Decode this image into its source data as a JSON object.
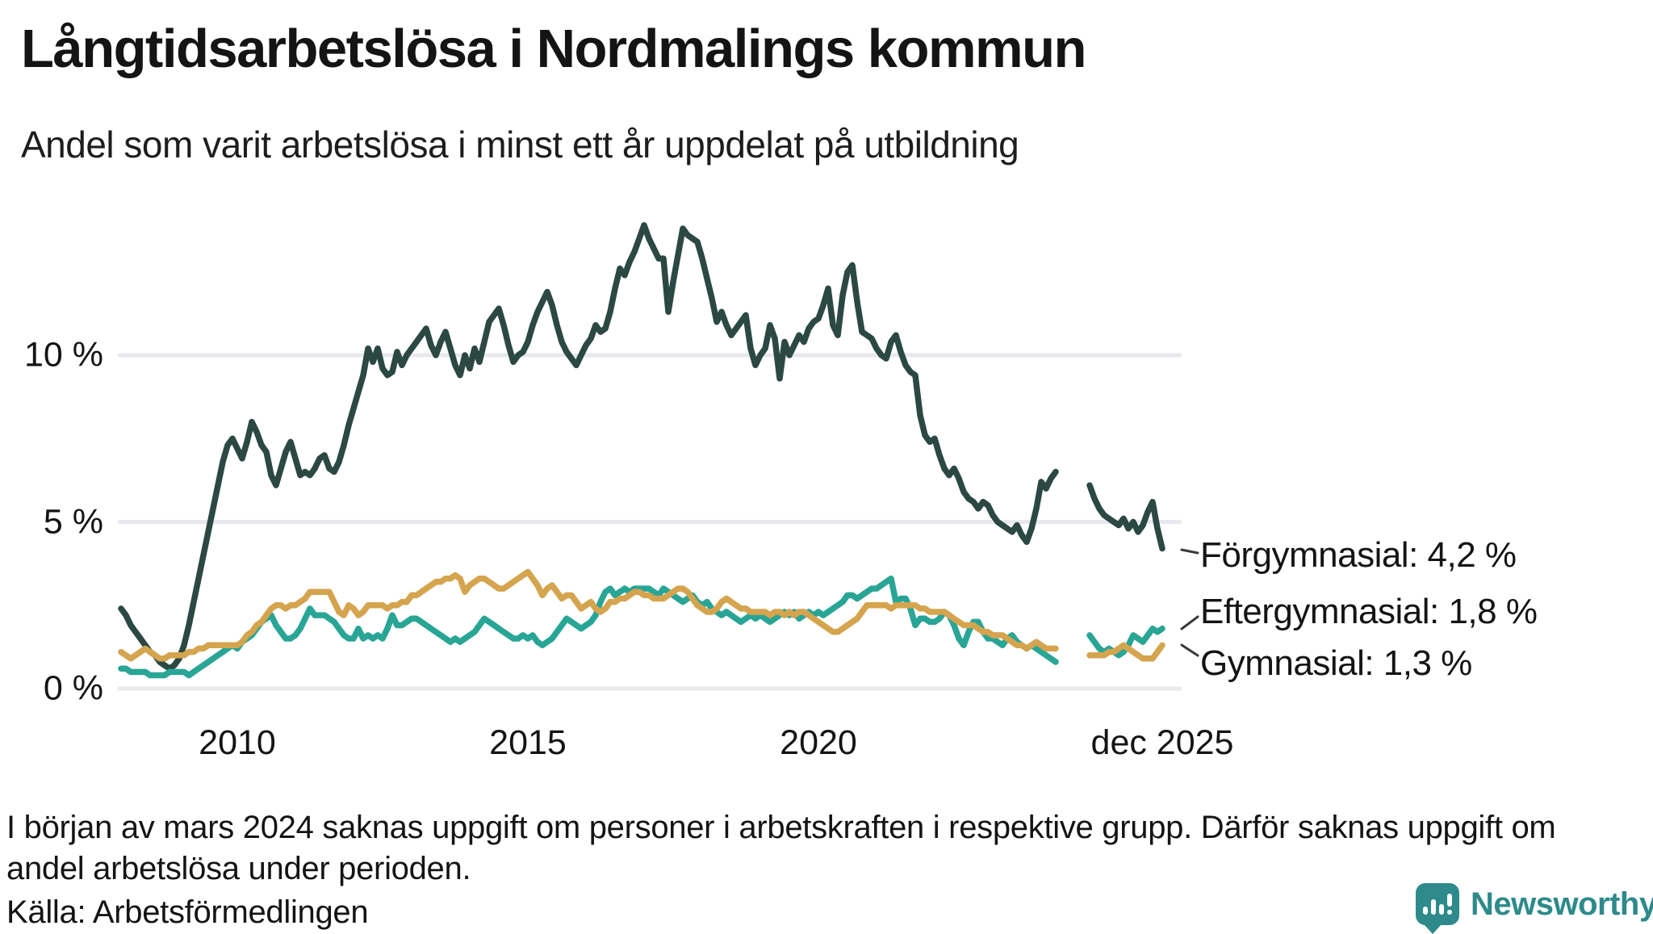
{
  "title": "Långtidsarbetslösa i Nordmalings kommun",
  "subtitle": "Andel som varit arbetslösa i minst ett år uppdelat på utbildning",
  "footnote": "I början av mars 2024 saknas uppgift om personer i arbetskraften i respektive grupp. Därför saknas uppgift om andel arbetslösa under perioden.",
  "source": "Källa: Arbetsförmedlingen",
  "logo_text": "Newsworthy",
  "colors": {
    "forgymnasial": "#2c4843",
    "eftergymnasial": "#29a596",
    "gymnasial": "#d5a44e",
    "gridline": "#e9e9ed",
    "text": "#141414",
    "leader": "#3a3a3a",
    "logo_teal": "#2e8a8b"
  },
  "y_axis": {
    "ticks": [
      "0 %",
      "5 %",
      "10 %"
    ]
  },
  "x_axis": {
    "ticks": [
      "2010",
      "2015",
      "2020",
      "dec 2025"
    ]
  },
  "annotations": [
    {
      "label": "Förgymnasial: 4,2 %"
    },
    {
      "label": "Eftergymnasial: 1,8 %"
    },
    {
      "label": "Gymnasial: 1,3 %"
    }
  ],
  "chart_data": {
    "type": "line",
    "unit": "percent",
    "frequency": "monthly",
    "x_start": "2008-01",
    "x_end": "2025-12",
    "data_gap": {
      "from": "2024-03",
      "to": "2024-08",
      "reason": "uppgift saknas"
    },
    "ylim": [
      0,
      14.5
    ],
    "grid_values": [
      0,
      5,
      10
    ],
    "series": [
      {
        "name": "Förgymnasial",
        "color": "#2c4843",
        "end_value": 4.2,
        "end_label": "Förgymnasial: 4,2 %",
        "values": [
          2.4,
          2.2,
          1.9,
          1.7,
          1.5,
          1.3,
          1.1,
          1.0,
          0.8,
          0.7,
          0.6,
          0.7,
          0.9,
          1.3,
          1.9,
          2.6,
          3.3,
          4.0,
          4.7,
          5.4,
          6.1,
          6.8,
          7.3,
          7.5,
          7.2,
          6.9,
          7.4,
          8.0,
          7.7,
          7.3,
          7.1,
          6.4,
          6.1,
          6.6,
          7.1,
          7.4,
          6.9,
          6.4,
          6.5,
          6.4,
          6.6,
          6.9,
          7.0,
          6.6,
          6.5,
          6.8,
          7.3,
          7.9,
          8.4,
          8.9,
          9.4,
          10.2,
          9.8,
          10.2,
          9.6,
          9.4,
          9.5,
          10.1,
          9.7,
          10.0,
          10.2,
          10.4,
          10.6,
          10.8,
          10.3,
          10.0,
          10.4,
          10.7,
          10.2,
          9.7,
          9.4,
          10.0,
          9.6,
          10.2,
          9.8,
          10.4,
          11.0,
          11.2,
          11.4,
          10.9,
          10.3,
          9.8,
          10.0,
          10.1,
          10.4,
          10.9,
          11.3,
          11.6,
          11.9,
          11.5,
          10.9,
          10.4,
          10.1,
          9.9,
          9.7,
          10.0,
          10.3,
          10.5,
          10.9,
          10.7,
          10.8,
          11.3,
          12.0,
          12.6,
          12.4,
          12.8,
          13.1,
          13.5,
          13.9,
          13.5,
          13.2,
          12.9,
          12.9,
          11.3,
          12.2,
          13.0,
          13.8,
          13.6,
          13.5,
          13.4,
          12.9,
          12.3,
          11.7,
          11.0,
          11.3,
          10.9,
          10.6,
          10.8,
          11.0,
          11.2,
          10.2,
          9.7,
          10.0,
          10.2,
          10.9,
          10.5,
          9.3,
          10.4,
          10.0,
          10.3,
          10.6,
          10.4,
          10.8,
          11.0,
          11.1,
          11.5,
          12.0,
          10.9,
          10.6,
          11.8,
          12.5,
          12.7,
          11.6,
          10.7,
          10.6,
          10.5,
          10.2,
          10.0,
          9.9,
          10.4,
          10.6,
          10.1,
          9.7,
          9.5,
          9.4,
          8.2,
          7.6,
          7.4,
          7.5,
          7.0,
          6.6,
          6.4,
          6.6,
          6.3,
          5.9,
          5.7,
          5.6,
          5.4,
          5.6,
          5.5,
          5.2,
          5.0,
          4.9,
          4.8,
          4.7,
          4.9,
          4.6,
          4.4,
          4.8,
          5.4,
          6.2,
          6.0,
          6.3,
          6.5,
          null,
          null,
          null,
          null,
          null,
          null,
          6.1,
          5.7,
          5.4,
          5.2,
          5.1,
          5.0,
          4.9,
          5.1,
          4.8,
          5.0,
          4.7,
          4.9,
          5.3,
          5.6,
          4.8,
          4.2
        ]
      },
      {
        "name": "Eftergymnasial",
        "color": "#29a596",
        "end_value": 1.8,
        "end_label": "Eftergymnasial: 1,8 %",
        "values": [
          0.6,
          0.6,
          0.5,
          0.5,
          0.5,
          0.5,
          0.4,
          0.4,
          0.4,
          0.4,
          0.5,
          0.5,
          0.5,
          0.5,
          0.4,
          0.5,
          0.6,
          0.7,
          0.8,
          0.9,
          1.0,
          1.1,
          1.2,
          1.3,
          1.2,
          1.4,
          1.5,
          1.6,
          1.8,
          2.0,
          2.1,
          2.2,
          1.9,
          1.7,
          1.5,
          1.5,
          1.6,
          1.8,
          2.1,
          2.4,
          2.2,
          2.2,
          2.2,
          2.1,
          2.0,
          1.8,
          1.6,
          1.5,
          1.5,
          1.8,
          1.5,
          1.6,
          1.5,
          1.6,
          1.5,
          1.8,
          2.2,
          1.9,
          1.9,
          2.0,
          2.1,
          2.1,
          2.0,
          1.9,
          1.8,
          1.7,
          1.6,
          1.5,
          1.4,
          1.5,
          1.4,
          1.5,
          1.6,
          1.7,
          1.9,
          2.1,
          2.0,
          1.9,
          1.8,
          1.7,
          1.6,
          1.5,
          1.5,
          1.6,
          1.5,
          1.6,
          1.4,
          1.3,
          1.4,
          1.5,
          1.7,
          1.9,
          2.1,
          2.0,
          1.9,
          1.8,
          1.9,
          2.0,
          2.2,
          2.6,
          2.9,
          3.0,
          2.8,
          2.9,
          3.0,
          2.9,
          3.0,
          3.0,
          3.0,
          3.0,
          2.9,
          2.8,
          3.0,
          2.9,
          2.8,
          2.7,
          2.6,
          2.7,
          2.8,
          2.6,
          2.5,
          2.6,
          2.4,
          2.3,
          2.2,
          2.3,
          2.2,
          2.1,
          2.0,
          2.1,
          2.2,
          2.1,
          2.2,
          2.1,
          2.0,
          2.1,
          2.2,
          2.3,
          2.2,
          2.3,
          2.1,
          2.2,
          2.3,
          2.2,
          2.3,
          2.2,
          2.3,
          2.4,
          2.5,
          2.6,
          2.8,
          2.8,
          2.7,
          2.8,
          2.9,
          3.0,
          3.0,
          3.1,
          3.2,
          3.3,
          2.6,
          2.7,
          2.7,
          2.4,
          1.9,
          2.1,
          2.1,
          2.0,
          2.0,
          2.1,
          2.3,
          2.2,
          1.9,
          1.5,
          1.3,
          1.7,
          2.0,
          2.0,
          1.7,
          1.5,
          1.5,
          1.4,
          1.3,
          1.5,
          1.6,
          1.4,
          1.3,
          1.2,
          1.3,
          1.2,
          1.1,
          1.0,
          0.9,
          0.8,
          null,
          null,
          null,
          null,
          null,
          null,
          1.6,
          1.4,
          1.2,
          1.1,
          1.2,
          1.1,
          1.0,
          1.1,
          1.3,
          1.6,
          1.5,
          1.4,
          1.6,
          1.8,
          1.7,
          1.8
        ]
      },
      {
        "name": "Gymnasial",
        "color": "#d5a44e",
        "end_value": 1.3,
        "end_label": "Gymnasial: 1,3 %",
        "values": [
          1.1,
          1.0,
          0.9,
          1.0,
          1.1,
          1.2,
          1.1,
          1.0,
          0.9,
          0.9,
          1.0,
          1.0,
          1.0,
          1.0,
          1.1,
          1.1,
          1.2,
          1.2,
          1.3,
          1.3,
          1.3,
          1.3,
          1.3,
          1.3,
          1.3,
          1.4,
          1.6,
          1.7,
          1.9,
          2.0,
          2.2,
          2.4,
          2.5,
          2.5,
          2.4,
          2.5,
          2.5,
          2.6,
          2.7,
          2.9,
          2.9,
          2.9,
          2.9,
          2.9,
          2.6,
          2.3,
          2.2,
          2.5,
          2.4,
          2.2,
          2.3,
          2.5,
          2.5,
          2.5,
          2.5,
          2.4,
          2.5,
          2.5,
          2.6,
          2.6,
          2.8,
          2.8,
          2.9,
          3.0,
          3.1,
          3.2,
          3.2,
          3.3,
          3.3,
          3.4,
          3.3,
          2.9,
          3.1,
          3.2,
          3.3,
          3.3,
          3.2,
          3.1,
          3.0,
          3.0,
          3.1,
          3.2,
          3.3,
          3.4,
          3.5,
          3.3,
          3.1,
          2.8,
          3.0,
          3.1,
          2.9,
          2.7,
          2.8,
          2.8,
          2.6,
          2.4,
          2.5,
          2.6,
          2.4,
          2.3,
          2.4,
          2.6,
          2.6,
          2.7,
          2.7,
          2.8,
          2.9,
          2.9,
          2.8,
          2.8,
          2.7,
          2.7,
          2.7,
          2.8,
          2.9,
          3.0,
          3.0,
          2.9,
          2.7,
          2.5,
          2.4,
          2.3,
          2.3,
          2.4,
          2.6,
          2.7,
          2.6,
          2.5,
          2.4,
          2.4,
          2.3,
          2.3,
          2.3,
          2.3,
          2.2,
          2.3,
          2.3,
          2.2,
          2.3,
          2.2,
          2.3,
          2.3,
          2.2,
          2.1,
          2.0,
          1.9,
          1.8,
          1.7,
          1.7,
          1.8,
          1.9,
          2.0,
          2.1,
          2.3,
          2.5,
          2.5,
          2.5,
          2.5,
          2.5,
          2.4,
          2.5,
          2.5,
          2.5,
          2.5,
          2.5,
          2.4,
          2.4,
          2.3,
          2.3,
          2.3,
          2.3,
          2.2,
          2.1,
          2.0,
          1.9,
          1.9,
          1.9,
          1.8,
          1.7,
          1.7,
          1.6,
          1.6,
          1.6,
          1.5,
          1.4,
          1.3,
          1.3,
          1.2,
          1.3,
          1.4,
          1.3,
          1.2,
          1.2,
          1.2,
          null,
          null,
          null,
          null,
          null,
          null,
          1.0,
          1.0,
          1.0,
          1.0,
          1.1,
          1.1,
          1.2,
          1.3,
          1.2,
          1.1,
          1.0,
          0.9,
          0.9,
          0.9,
          1.1,
          1.3
        ]
      }
    ]
  }
}
